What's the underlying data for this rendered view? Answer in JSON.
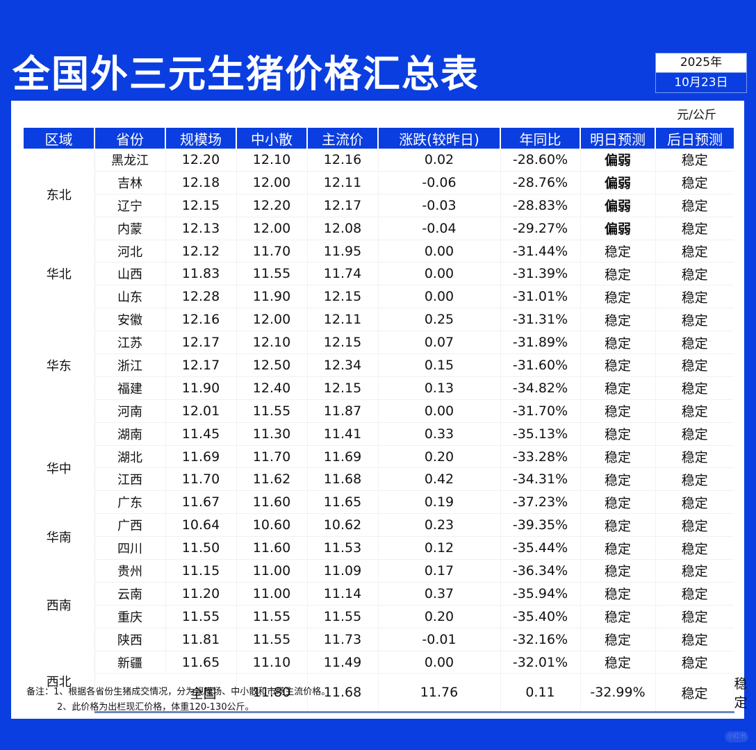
{
  "header": {
    "title": "全国外三元生猪价格汇总表",
    "year": "2025年",
    "date": "10月23日",
    "unit": "元/公斤"
  },
  "colors": {
    "brand_blue": "#0a3ee0",
    "rise_red": "#e0283c",
    "fall_green": "#16c26a"
  },
  "table": {
    "columns": [
      "区域",
      "省份",
      "规模场",
      "中小散",
      "主流价",
      "涨跌(较昨日)",
      "年同比",
      "明日预测",
      "后日预测"
    ],
    "regions": [
      {
        "name": "东北",
        "rowspan": 4
      },
      {
        "name": "华北",
        "rowspan": 3
      },
      {
        "name": "华东",
        "rowspan": 5
      },
      {
        "name": "华中",
        "rowspan": 4
      },
      {
        "name": "华南",
        "rowspan": 2
      },
      {
        "name": "西南",
        "rowspan": 4
      },
      {
        "name": "西北",
        "rowspan": 2
      }
    ],
    "rows": [
      {
        "province": "黑龙江",
        "large": "12.20",
        "small": "12.10",
        "main": "12.16",
        "change": "0.02",
        "change_dir": "up",
        "yoy": "-28.60%",
        "tomorrow": "偏弱",
        "day_after": "稳定"
      },
      {
        "province": "吉林",
        "large": "12.18",
        "small": "12.00",
        "main": "12.11",
        "change": "-0.06",
        "change_dir": "down",
        "yoy": "-28.76%",
        "tomorrow": "偏弱",
        "day_after": "稳定"
      },
      {
        "province": "辽宁",
        "large": "12.15",
        "small": "12.20",
        "main": "12.17",
        "change": "-0.03",
        "change_dir": "down",
        "yoy": "-28.83%",
        "tomorrow": "偏弱",
        "day_after": "稳定"
      },
      {
        "province": "内蒙",
        "large": "12.13",
        "small": "12.00",
        "main": "12.08",
        "change": "-0.04",
        "change_dir": "down",
        "yoy": "-29.27%",
        "tomorrow": "偏弱",
        "day_after": "稳定"
      },
      {
        "province": "河北",
        "large": "12.12",
        "small": "11.70",
        "main": "11.95",
        "change": "0.00",
        "change_dir": "flat",
        "yoy": "-31.44%",
        "tomorrow": "稳定",
        "day_after": "稳定"
      },
      {
        "province": "山西",
        "large": "11.83",
        "small": "11.55",
        "main": "11.74",
        "change": "0.00",
        "change_dir": "flat",
        "yoy": "-31.39%",
        "tomorrow": "稳定",
        "day_after": "稳定"
      },
      {
        "province": "山东",
        "large": "12.28",
        "small": "11.90",
        "main": "12.15",
        "change": "0.00",
        "change_dir": "flat",
        "yoy": "-31.01%",
        "tomorrow": "稳定",
        "day_after": "稳定"
      },
      {
        "province": "安徽",
        "large": "12.16",
        "small": "12.00",
        "main": "12.11",
        "change": "0.25",
        "change_dir": "up",
        "yoy": "-31.31%",
        "tomorrow": "稳定",
        "day_after": "稳定"
      },
      {
        "province": "江苏",
        "large": "12.17",
        "small": "12.10",
        "main": "12.15",
        "change": "0.07",
        "change_dir": "up",
        "yoy": "-31.89%",
        "tomorrow": "稳定",
        "day_after": "稳定"
      },
      {
        "province": "浙江",
        "large": "12.17",
        "small": "12.50",
        "main": "12.34",
        "change": "0.15",
        "change_dir": "up",
        "yoy": "-31.60%",
        "tomorrow": "稳定",
        "day_after": "稳定"
      },
      {
        "province": "福建",
        "large": "11.90",
        "small": "12.40",
        "main": "12.15",
        "change": "0.13",
        "change_dir": "up",
        "yoy": "-34.82%",
        "tomorrow": "稳定",
        "day_after": "稳定"
      },
      {
        "province": "河南",
        "large": "12.01",
        "small": "11.55",
        "main": "11.87",
        "change": "0.00",
        "change_dir": "flat",
        "yoy": "-31.70%",
        "tomorrow": "稳定",
        "day_after": "稳定"
      },
      {
        "province": "湖南",
        "large": "11.45",
        "small": "11.30",
        "main": "11.41",
        "change": "0.33",
        "change_dir": "up",
        "yoy": "-35.13%",
        "tomorrow": "稳定",
        "day_after": "稳定"
      },
      {
        "province": "湖北",
        "large": "11.69",
        "small": "11.70",
        "main": "11.69",
        "change": "0.20",
        "change_dir": "up",
        "yoy": "-33.28%",
        "tomorrow": "稳定",
        "day_after": "稳定"
      },
      {
        "province": "江西",
        "large": "11.70",
        "small": "11.62",
        "main": "11.68",
        "change": "0.42",
        "change_dir": "up",
        "yoy": "-34.31%",
        "tomorrow": "稳定",
        "day_after": "稳定"
      },
      {
        "province": "广东",
        "large": "11.67",
        "small": "11.60",
        "main": "11.65",
        "change": "0.19",
        "change_dir": "up",
        "yoy": "-37.23%",
        "tomorrow": "稳定",
        "day_after": "稳定"
      },
      {
        "province": "广西",
        "large": "10.64",
        "small": "10.60",
        "main": "10.62",
        "change": "0.23",
        "change_dir": "up",
        "yoy": "-39.35%",
        "tomorrow": "稳定",
        "day_after": "稳定"
      },
      {
        "province": "四川",
        "large": "11.50",
        "small": "11.60",
        "main": "11.53",
        "change": "0.12",
        "change_dir": "up",
        "yoy": "-35.44%",
        "tomorrow": "稳定",
        "day_after": "稳定"
      },
      {
        "province": "贵州",
        "large": "11.15",
        "small": "11.00",
        "main": "11.09",
        "change": "0.17",
        "change_dir": "up",
        "yoy": "-36.34%",
        "tomorrow": "稳定",
        "day_after": "稳定"
      },
      {
        "province": "云南",
        "large": "11.20",
        "small": "11.00",
        "main": "11.14",
        "change": "0.37",
        "change_dir": "up",
        "yoy": "-35.94%",
        "tomorrow": "稳定",
        "day_after": "稳定"
      },
      {
        "province": "重庆",
        "large": "11.55",
        "small": "11.55",
        "main": "11.55",
        "change": "0.20",
        "change_dir": "up",
        "yoy": "-35.40%",
        "tomorrow": "稳定",
        "day_after": "稳定"
      },
      {
        "province": "陕西",
        "large": "11.81",
        "small": "11.55",
        "main": "11.73",
        "change": "-0.01",
        "change_dir": "down",
        "yoy": "-32.16%",
        "tomorrow": "稳定",
        "day_after": "稳定"
      },
      {
        "province": "新疆",
        "large": "11.65",
        "small": "11.10",
        "main": "11.49",
        "change": "0.00",
        "change_dir": "flat",
        "yoy": "-32.01%",
        "tomorrow": "稳定",
        "day_after": "稳定"
      }
    ],
    "total": {
      "label": "全国",
      "large": "11.80",
      "small": "11.68",
      "main": "11.76",
      "change": "0.11",
      "change_dir": "up",
      "yoy": "-32.99%",
      "tomorrow": "稳定",
      "day_after": "稳定"
    }
  },
  "notes": {
    "line1": "备注：1、根据各省份生猪成交情况，分为规模场、中小散和市场主流价格。",
    "line2": "2、此价格为出栏现汇价格，体重120-130公斤。"
  },
  "watermark": "小红书"
}
